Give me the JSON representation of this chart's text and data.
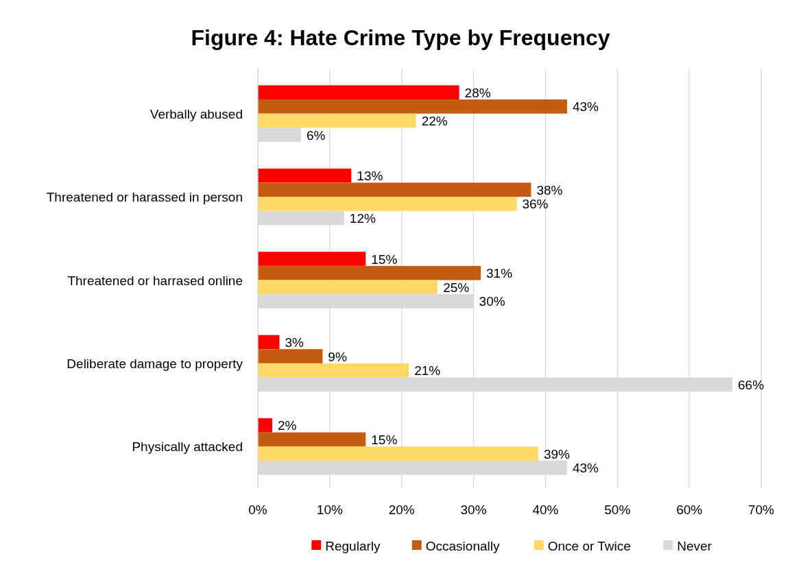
{
  "chart_data": {
    "type": "bar",
    "orientation": "horizontal",
    "title": "Figure 4: Hate Crime Type by Frequency",
    "categories": [
      "Verbally abused",
      "Threatened or harassed in person",
      "Threatened or harrased online",
      "Deliberate damage to property",
      "Physically attacked"
    ],
    "series": [
      {
        "name": "Regularly",
        "color": "#ff0000",
        "values": [
          28,
          13,
          15,
          3,
          2
        ],
        "value_labels": [
          "28%",
          "13%",
          "15%",
          "3%",
          "2%"
        ]
      },
      {
        "name": "Occasionally",
        "color": "#c55a11",
        "values": [
          43,
          38,
          31,
          9,
          15
        ],
        "value_labels": [
          "43%",
          "38%",
          "31%",
          "9%",
          "15%"
        ]
      },
      {
        "name": "Once or Twice",
        "color": "#ffd966",
        "values": [
          22,
          36,
          25,
          21,
          39
        ],
        "value_labels": [
          "22%",
          "36%",
          "25%",
          "21%",
          "39%"
        ]
      },
      {
        "name": "Never",
        "color": "#d9d9d9",
        "values": [
          6,
          12,
          30,
          66,
          43
        ],
        "value_labels": [
          "6%",
          "12%",
          "30%",
          "66%",
          "43%"
        ]
      }
    ],
    "xlim": [
      0,
      70
    ],
    "xticks": [
      {
        "value": 0,
        "label": "0%"
      },
      {
        "value": 10,
        "label": "10%"
      },
      {
        "value": 20,
        "label": "20%"
      },
      {
        "value": 30,
        "label": "30%"
      },
      {
        "value": 40,
        "label": "40%"
      },
      {
        "value": 50,
        "label": "50%"
      },
      {
        "value": 60,
        "label": "60%"
      },
      {
        "value": 70,
        "label": "70%"
      }
    ],
    "grid": "x",
    "legend": "bottom"
  }
}
